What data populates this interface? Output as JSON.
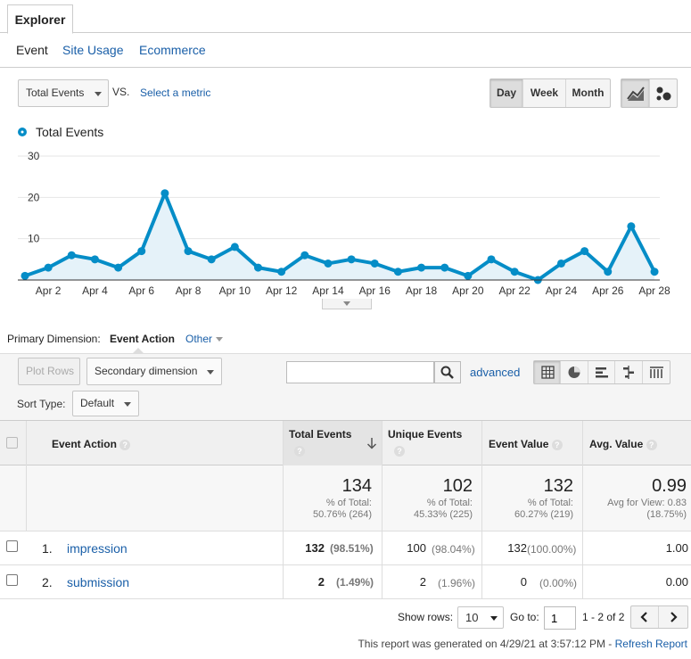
{
  "tabs": {
    "explorer": "Explorer"
  },
  "subtabs": {
    "event": "Event",
    "site_usage": "Site Usage",
    "ecommerce": "Ecommerce"
  },
  "metric": {
    "selected": "Total Events",
    "vs": "VS.",
    "select_metric": "Select a metric"
  },
  "time": {
    "day": "Day",
    "week": "Week",
    "month": "Month",
    "active": "Day"
  },
  "chart_data": {
    "type": "line",
    "series": [
      {
        "name": "Total Events",
        "color": "#058dc7"
      }
    ],
    "x": [
      "Apr 1",
      "Apr 2",
      "Apr 3",
      "Apr 4",
      "Apr 5",
      "Apr 6",
      "Apr 7",
      "Apr 8",
      "Apr 9",
      "Apr 10",
      "Apr 11",
      "Apr 12",
      "Apr 13",
      "Apr 14",
      "Apr 15",
      "Apr 16",
      "Apr 17",
      "Apr 18",
      "Apr 19",
      "Apr 20",
      "Apr 21",
      "Apr 22",
      "Apr 23",
      "Apr 24",
      "Apr 25",
      "Apr 26",
      "Apr 27",
      "Apr 28"
    ],
    "values": [
      1,
      3,
      6,
      5,
      3,
      7,
      21,
      7,
      5,
      8,
      3,
      2,
      6,
      4,
      5,
      4,
      2,
      3,
      3,
      1,
      5,
      2,
      0,
      4,
      7,
      2,
      13,
      2
    ],
    "tick_labels": [
      "Apr 2",
      "Apr 4",
      "Apr 6",
      "Apr 8",
      "Apr 10",
      "Apr 12",
      "Apr 14",
      "Apr 16",
      "Apr 18",
      "Apr 20",
      "Apr 22",
      "Apr 24",
      "Apr 26",
      "Apr 28"
    ],
    "y_ticks": [
      "30",
      "20",
      "10"
    ],
    "ylim": [
      0,
      30
    ],
    "grid": true,
    "legend": "top-left"
  },
  "dimension": {
    "label": "Primary Dimension:",
    "active": "Event Action",
    "other": "Other"
  },
  "controls": {
    "plot_rows": "Plot Rows",
    "secondary": "Secondary dimension",
    "advanced": "advanced",
    "search_value": "",
    "sort_label": "Sort Type:",
    "sort_value": "Default"
  },
  "table": {
    "headers": {
      "action": "Event Action",
      "total": "Total Events",
      "unique": "Unique Events",
      "value": "Event Value",
      "avg": "Avg. Value"
    },
    "totals": {
      "total": "134",
      "total_sub1": "% of Total:",
      "total_sub2": "50.76% (264)",
      "unique": "102",
      "unique_sub1": "% of Total:",
      "unique_sub2": "45.33% (225)",
      "value": "132",
      "value_sub1": "% of Total:",
      "value_sub2": "60.27% (219)",
      "avg": "0.99",
      "avg_sub1": "Avg for View: 0.83",
      "avg_sub2": "(18.75%)"
    },
    "rows": [
      {
        "idx": "1.",
        "name": "impression",
        "total": "132",
        "total_pct": "(98.51%)",
        "unique": "100",
        "unique_pct": "(98.04%)",
        "value": "132",
        "value_pct": "(100.00%)",
        "avg": "1.00"
      },
      {
        "idx": "2.",
        "name": "submission",
        "total": "2",
        "total_pct": "(1.49%)",
        "unique": "2",
        "unique_pct": "(1.96%)",
        "value": "0",
        "value_pct": "(0.00%)",
        "avg": "0.00"
      }
    ]
  },
  "pager": {
    "show_rows_label": "Show rows:",
    "rows_value": "10",
    "goto_label": "Go to:",
    "goto_value": "1",
    "range": "1 - 2 of 2"
  },
  "footer": {
    "generated": "This report was generated on 4/29/21 at 3:57:12 PM - ",
    "refresh": "Refresh Report"
  }
}
